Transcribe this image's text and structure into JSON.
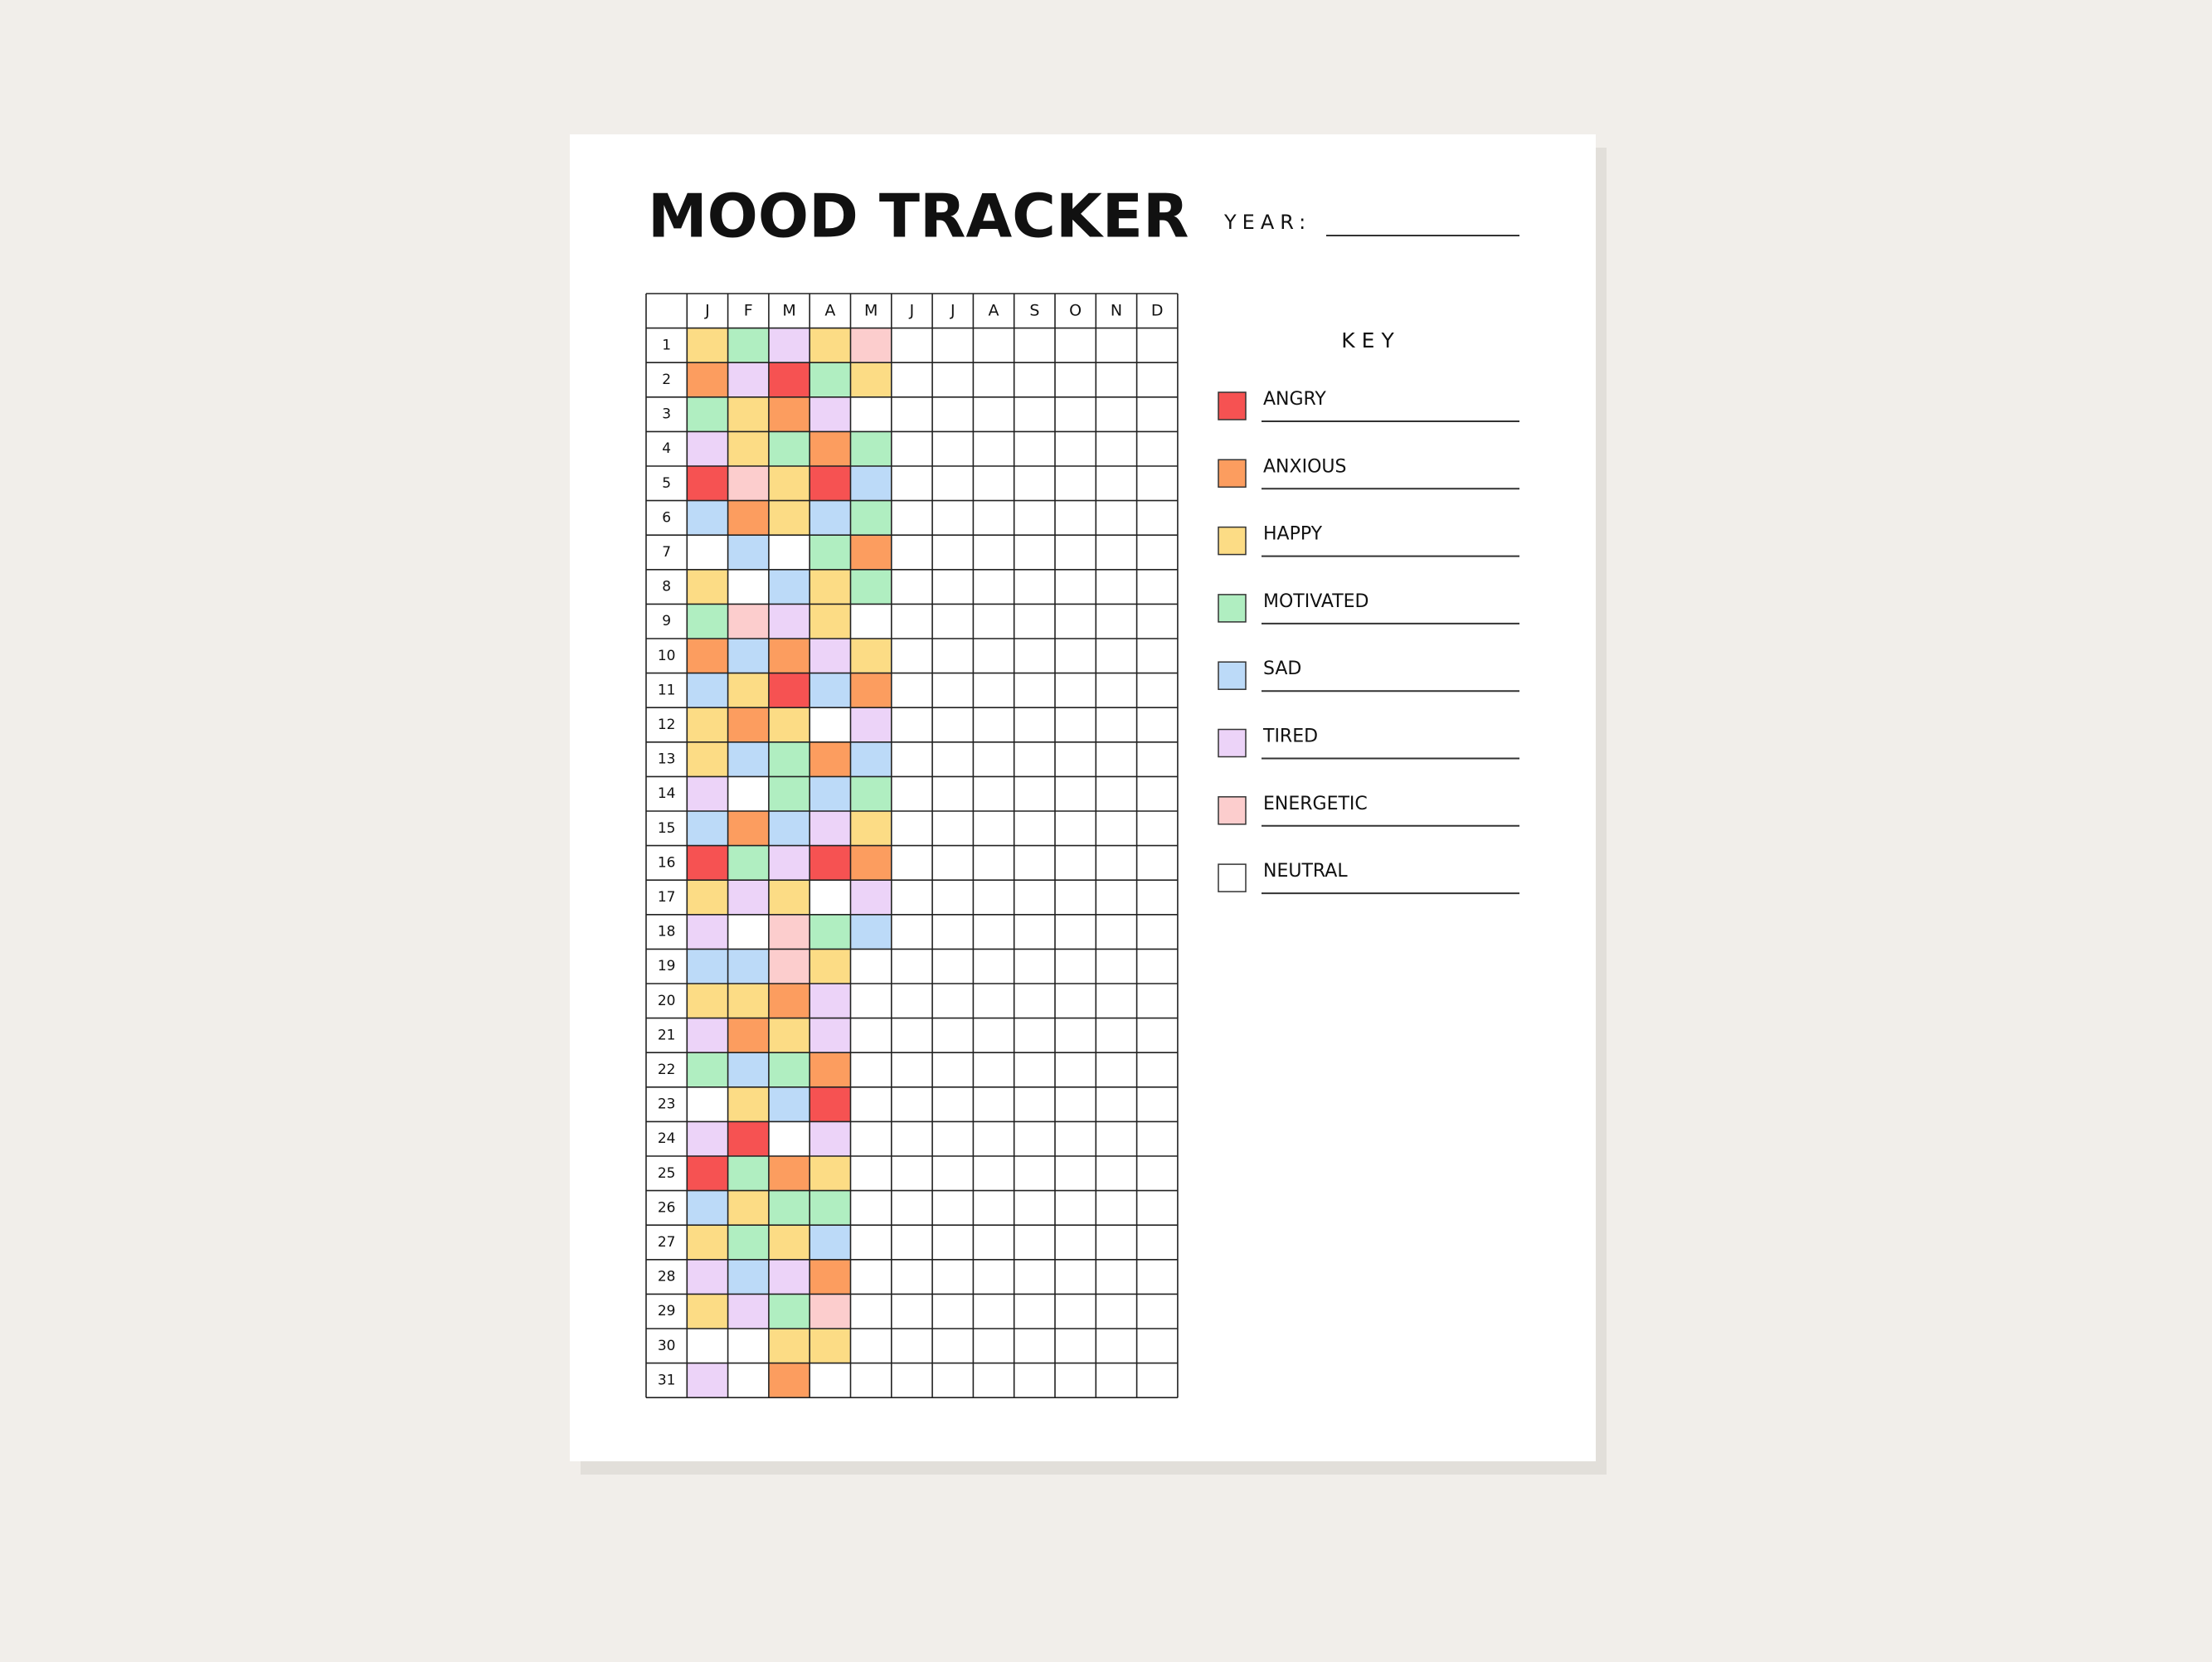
{
  "header": {
    "title": "MOOD TRACKER",
    "year_label": "YEAR:"
  },
  "grid": {
    "months": [
      "J",
      "F",
      "M",
      "A",
      "M",
      "J",
      "J",
      "A",
      "S",
      "O",
      "N",
      "D"
    ],
    "days": [
      1,
      2,
      3,
      4,
      5,
      6,
      7,
      8,
      9,
      10,
      11,
      12,
      13,
      14,
      15,
      16,
      17,
      18,
      19,
      20,
      21,
      22,
      23,
      24,
      25,
      26,
      27,
      28,
      29,
      30,
      31
    ],
    "cells": [
      [
        2,
        3,
        5,
        2,
        6
      ],
      [
        1,
        5,
        0,
        3,
        2
      ],
      [
        3,
        2,
        1,
        5,
        7
      ],
      [
        5,
        2,
        3,
        1,
        3
      ],
      [
        0,
        6,
        2,
        0,
        4
      ],
      [
        4,
        1,
        2,
        4,
        3
      ],
      [
        7,
        4,
        7,
        3,
        1
      ],
      [
        2,
        7,
        4,
        2,
        3
      ],
      [
        3,
        6,
        5,
        2,
        7
      ],
      [
        1,
        4,
        1,
        5,
        2
      ],
      [
        4,
        2,
        0,
        4,
        1
      ],
      [
        2,
        1,
        2,
        7,
        5
      ],
      [
        2,
        4,
        3,
        1,
        4
      ],
      [
        5,
        7,
        3,
        4,
        3
      ],
      [
        4,
        1,
        4,
        5,
        2
      ],
      [
        0,
        3,
        5,
        0,
        1
      ],
      [
        2,
        5,
        2,
        7,
        5
      ],
      [
        5,
        7,
        6,
        3,
        4
      ],
      [
        4,
        4,
        6,
        2
      ],
      [
        2,
        2,
        1,
        5
      ],
      [
        5,
        1,
        2,
        5
      ],
      [
        3,
        4,
        3,
        1
      ],
      [
        7,
        2,
        4,
        0
      ],
      [
        5,
        0,
        7,
        5
      ],
      [
        0,
        3,
        1,
        2
      ],
      [
        4,
        2,
        3,
        3
      ],
      [
        2,
        3,
        2,
        4
      ],
      [
        5,
        4,
        5,
        1
      ],
      [
        2,
        5,
        3,
        6
      ],
      [
        7,
        7,
        2,
        2
      ],
      [
        5,
        null,
        1
      ]
    ]
  },
  "key": {
    "title": "KEY",
    "items": [
      {
        "label": "ANGRY",
        "color": "#f65252"
      },
      {
        "label": "ANXIOUS",
        "color": "#fc9d5f"
      },
      {
        "label": "HAPPY",
        "color": "#fcdc85"
      },
      {
        "label": "MOTIVATED",
        "color": "#b0eec1"
      },
      {
        "label": "SAD",
        "color": "#bcdaf8"
      },
      {
        "label": "TIRED",
        "color": "#ecd3f8"
      },
      {
        "label": "ENERGETIC",
        "color": "#fccdcd"
      },
      {
        "label": "NEUTRAL",
        "color": "#ffffff"
      }
    ]
  }
}
